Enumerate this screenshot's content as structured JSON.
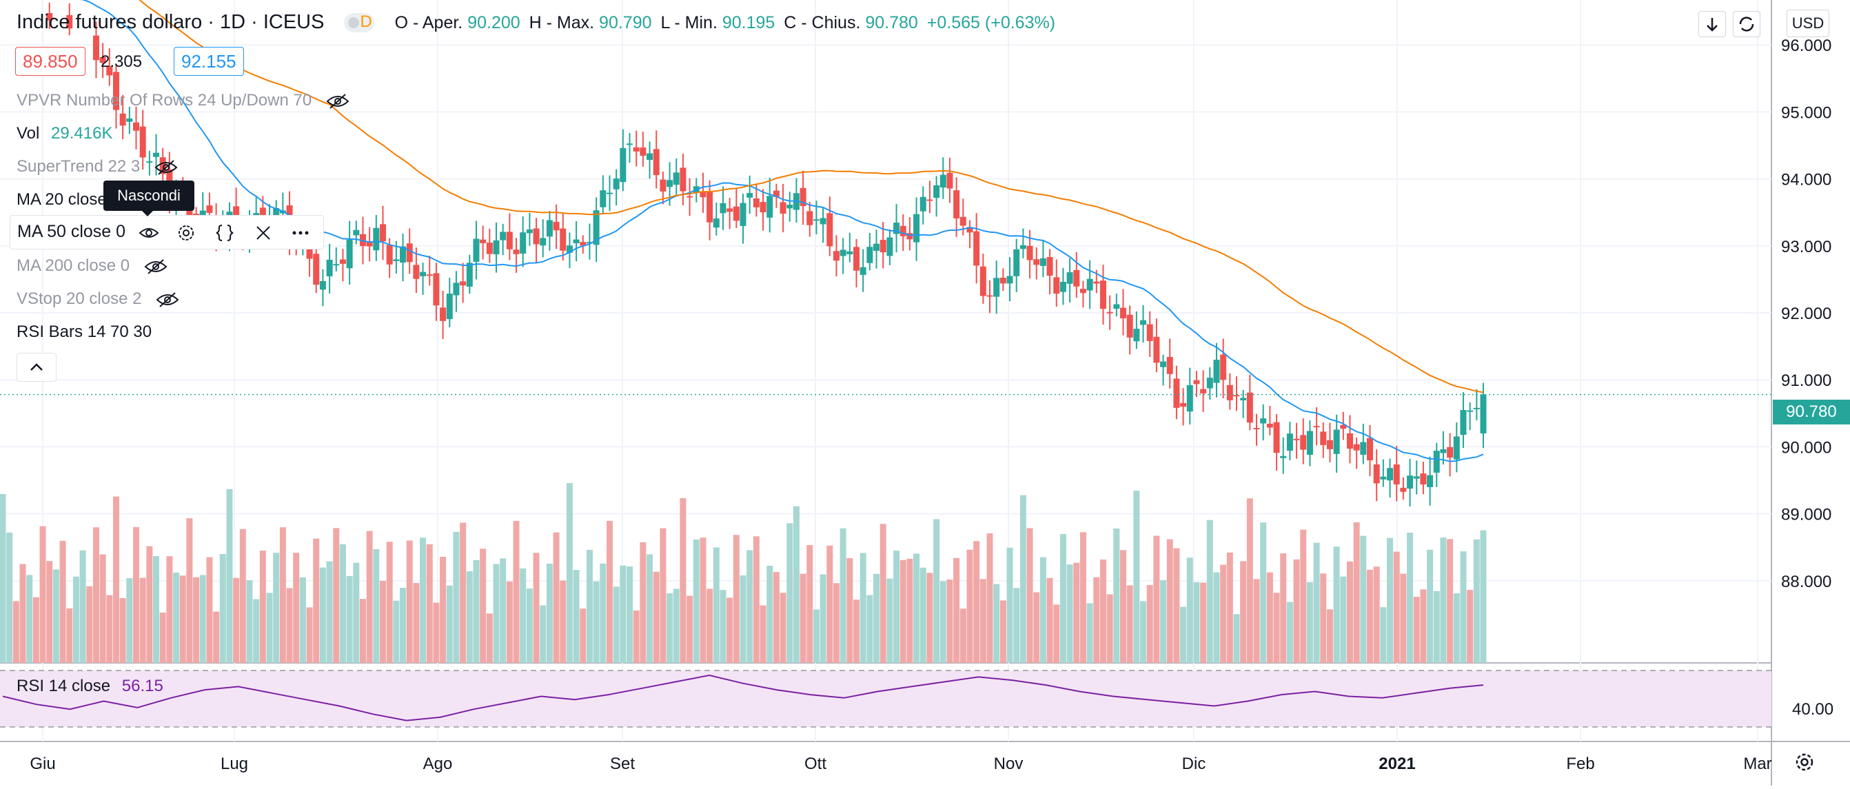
{
  "header": {
    "symbol": "Indice futures dollaro · 1D · ICEUS",
    "badge": "D",
    "ohlc": {
      "open_label": "O - Aper.",
      "open": "90.200",
      "high_label": "H - Max.",
      "high": "90.790",
      "low_label": "L - Min.",
      "low": "90.195",
      "close_label": "C - Chius.",
      "close": "90.780",
      "change": "+0.565 (+0.63%)"
    },
    "bid": "89.850",
    "spread": "2.305",
    "ask": "92.155",
    "currency": "USD"
  },
  "indicators": {
    "vpvr": "VPVR Number Of Rows 24 Up/Down 70",
    "vol_label": "Vol",
    "vol_value": "29.416K",
    "supertrend": "SuperTrend 22 3",
    "ma20": "MA 20 close",
    "ma50": "MA 50 close 0",
    "ma200": "MA 200 close 0",
    "vstop": "VStop 20 close 2",
    "rsibars": "RSI Bars 14 70 30",
    "tooltip": "Nascondi"
  },
  "rsi_panel": {
    "label": "RSI 14 close",
    "value": "56.15",
    "tick": "40.00"
  },
  "price_tag": "90.780",
  "colors": {
    "up": "#26a69a",
    "down": "#ef5350",
    "ma20": "#2196f3",
    "ma50": "#f57c00",
    "rsi": "#7b1fa2"
  },
  "chart_data": {
    "type": "candlestick",
    "y_ticks": [
      "96.000",
      "95.000",
      "94.000",
      "93.000",
      "92.000",
      "91.000",
      "90.000",
      "89.000",
      "88.000"
    ],
    "ylim": [
      87.0,
      96.5
    ],
    "x_ticks": [
      "Giu",
      "Lug",
      "Ago",
      "Set",
      "Ott",
      "Nov",
      "Dic",
      "2021",
      "Feb",
      "Mar"
    ],
    "anchors": [
      {
        "i": 0,
        "c": 97.0
      },
      {
        "i": 12,
        "c": 96.3
      },
      {
        "i": 22,
        "c": 94.2
      },
      {
        "i": 32,
        "c": 93.2
      },
      {
        "i": 40,
        "c": 93.5
      },
      {
        "i": 48,
        "c": 92.6
      },
      {
        "i": 56,
        "c": 93.2
      },
      {
        "i": 60,
        "c": 92.8
      },
      {
        "i": 66,
        "c": 92.1
      },
      {
        "i": 70,
        "c": 92.8
      },
      {
        "i": 78,
        "c": 93.2
      },
      {
        "i": 86,
        "c": 93.0
      },
      {
        "i": 92,
        "c": 94.0
      },
      {
        "i": 95,
        "c": 94.6
      },
      {
        "i": 100,
        "c": 93.9
      },
      {
        "i": 106,
        "c": 93.6
      },
      {
        "i": 112,
        "c": 93.5
      },
      {
        "i": 118,
        "c": 93.8
      },
      {
        "i": 124,
        "c": 93.0
      },
      {
        "i": 130,
        "c": 92.8
      },
      {
        "i": 135,
        "c": 93.2
      },
      {
        "i": 140,
        "c": 94.0
      },
      {
        "i": 144,
        "c": 93.3
      },
      {
        "i": 148,
        "c": 92.3
      },
      {
        "i": 154,
        "c": 92.9
      },
      {
        "i": 160,
        "c": 92.4
      },
      {
        "i": 166,
        "c": 92.2
      },
      {
        "i": 172,
        "c": 91.5
      },
      {
        "i": 176,
        "c": 90.8
      },
      {
        "i": 182,
        "c": 91.0
      },
      {
        "i": 188,
        "c": 90.5
      },
      {
        "i": 192,
        "c": 89.8
      },
      {
        "i": 196,
        "c": 90.3
      },
      {
        "i": 202,
        "c": 90.0
      },
      {
        "i": 208,
        "c": 89.6
      },
      {
        "i": 212,
        "c": 89.3
      },
      {
        "i": 216,
        "c": 90.0
      },
      {
        "i": 219,
        "c": 90.4
      },
      {
        "i": 222,
        "c": 90.78
      }
    ],
    "rsi_points": [
      49,
      44,
      41,
      46,
      42,
      48,
      53,
      55,
      51,
      47,
      43,
      38,
      34,
      36,
      41,
      45,
      49,
      47,
      50,
      54,
      58,
      62,
      57,
      53,
      50,
      48,
      52,
      55,
      58,
      61,
      59,
      56,
      52,
      49,
      47,
      45,
      43,
      46,
      50,
      52,
      49,
      48,
      51,
      54,
      56
    ]
  }
}
